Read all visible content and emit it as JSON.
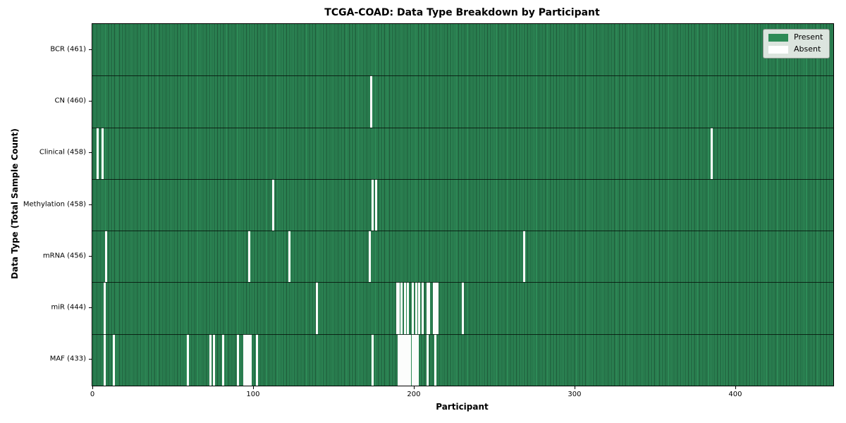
{
  "chart_data": {
    "type": "heatmap",
    "title": "TCGA-COAD: Data Type Breakdown by Participant",
    "xlabel": "Participant",
    "ylabel": "Data Type (Total Sample Count)",
    "n_participants": 461,
    "x_ticks": [
      0,
      100,
      200,
      300,
      400
    ],
    "grid": false,
    "legend_position": "upper right",
    "colors": {
      "present_fill": "#2e8b57",
      "bar_edge": "#1b5134",
      "absent_fill": "#fcfdfc",
      "row_separator": "#0a1f14",
      "axis": "#000000"
    },
    "legend": [
      {
        "label": "Present",
        "color": "#2e8b57"
      },
      {
        "label": "Absent",
        "color": "#ffffff"
      }
    ],
    "rows": [
      {
        "label": "BCR (461)",
        "data_type": "BCR",
        "present_count": 461,
        "absent_participants": []
      },
      {
        "label": "CN (460)",
        "data_type": "CN",
        "present_count": 460,
        "absent_participants": [
          173
        ]
      },
      {
        "label": "Clinical (458)",
        "data_type": "Clinical",
        "present_count": 458,
        "absent_participants": [
          3,
          6,
          385
        ]
      },
      {
        "label": "Methylation (458)",
        "data_type": "Methylation",
        "present_count": 458,
        "absent_participants": [
          112,
          174,
          176
        ]
      },
      {
        "label": "mRNA (456)",
        "data_type": "mRNA",
        "present_count": 456,
        "absent_participants": [
          8,
          97,
          122,
          172,
          268
        ]
      },
      {
        "label": "miR (444)",
        "data_type": "miR",
        "present_count": 444,
        "absent_participants": [
          7,
          139,
          189,
          190,
          192,
          194,
          196,
          199,
          201,
          203,
          205,
          208,
          209,
          212,
          213,
          214,
          230
        ]
      },
      {
        "label": "MAF (433)",
        "data_type": "MAF",
        "present_count": 433,
        "absent_participants": [
          7,
          13,
          59,
          73,
          75,
          81,
          90,
          94,
          95,
          96,
          97,
          98,
          102,
          174,
          190,
          191,
          192,
          193,
          194,
          195,
          196,
          197,
          199,
          200,
          201,
          202,
          208,
          213
        ]
      }
    ]
  }
}
